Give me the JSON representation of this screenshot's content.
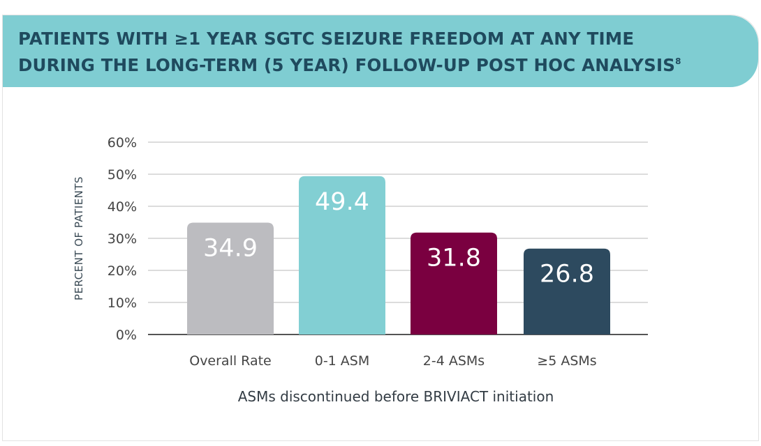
{
  "header": {
    "title_line1": "PATIENTS WITH ≥1 YEAR SGTC SEIZURE FREEDOM AT ANY TIME",
    "title_line2": "DURING THE LONG-TERM (5 YEAR) FOLLOW-UP POST HOC ANALYSIS",
    "title_superscript": "8"
  },
  "chart_data": {
    "type": "bar",
    "categories": [
      "Overall Rate",
      "0-1 ASM",
      "2-4 ASMs",
      "≥5 ASMs"
    ],
    "values": [
      34.9,
      49.4,
      31.8,
      26.8
    ],
    "data_labels": [
      "34.9",
      "49.4",
      "31.8",
      "26.8"
    ],
    "bar_colors": [
      "#bcbcc0",
      "#82cfd3",
      "#7a0040",
      "#2d4a5f"
    ],
    "xlabel": "ASMs discontinued before BRIVIACT initiation",
    "ylabel": "PERCENT OF PATIENTS",
    "ylim": [
      0,
      60
    ],
    "yticks": [
      0,
      10,
      20,
      30,
      40,
      50,
      60
    ],
    "ytick_labels": [
      "0%",
      "10%",
      "20%",
      "30%",
      "40%",
      "50%",
      "60%"
    ],
    "grid": true,
    "grid_color": "#c8c8c8",
    "axis_color": "#555555",
    "tick_label_color": "#444444",
    "data_label_color": "#ffffff"
  }
}
